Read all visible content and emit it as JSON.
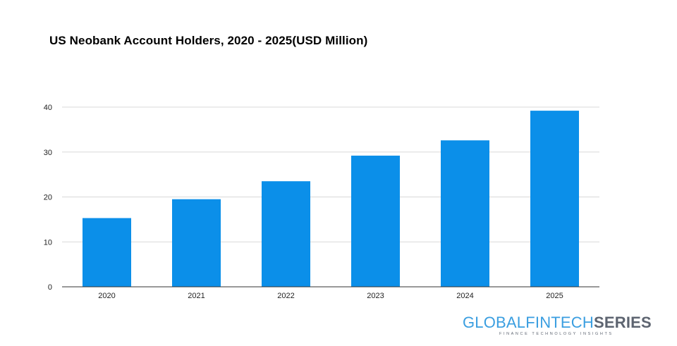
{
  "chart_data": {
    "type": "bar",
    "title": "US Neobank Account Holders, 2020 - 2025(USD Million)",
    "categories": [
      "2020",
      "2021",
      "2022",
      "2023",
      "2024",
      "2025"
    ],
    "values": [
      15.3,
      19.5,
      23.5,
      29.2,
      32.6,
      39.2
    ],
    "xlabel": "",
    "ylabel": "",
    "ylim": [
      0,
      40
    ],
    "yticks": [
      "0",
      "10",
      "20",
      "30",
      "40"
    ],
    "grid": true,
    "bar_color": "#0b8fe9"
  },
  "branding": {
    "name_part1": "GLOBALFINTECH",
    "name_part2": "SERIES",
    "tagline": "FINANCE TECHNOLOGY INSIGHTS"
  }
}
